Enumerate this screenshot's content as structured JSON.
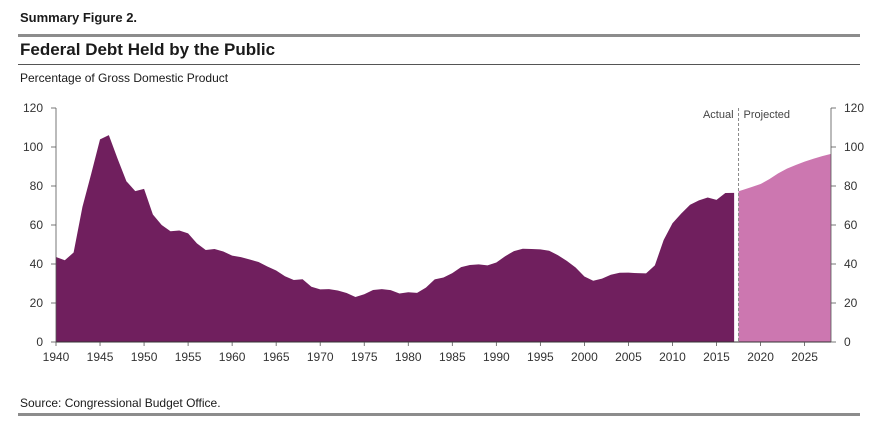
{
  "figure_label": "Summary Figure 2.",
  "title": "Federal Debt Held by the Public",
  "subtitle": "Percentage of Gross Domestic Product",
  "source": "Source: Congressional Budget Office.",
  "colors": {
    "actual": "#701f5e",
    "projected": "#cc77b0",
    "rule": "#8c8c8c",
    "divider": "#888888"
  },
  "chart_data": {
    "type": "area",
    "ylim": [
      0,
      120
    ],
    "xlim": [
      1940,
      2028
    ],
    "y_ticks": [
      0,
      20,
      40,
      60,
      80,
      100,
      120
    ],
    "x_ticks": [
      1940,
      1945,
      1950,
      1955,
      1960,
      1965,
      1970,
      1975,
      1980,
      1985,
      1990,
      1995,
      2000,
      2005,
      2010,
      2015,
      2020,
      2025
    ],
    "divider_year": 2017.5,
    "region_labels": {
      "left": "Actual",
      "right": "Projected"
    },
    "grid": false,
    "series": [
      {
        "name": "Actual",
        "x": [
          1940,
          1941,
          1942,
          1943,
          1944,
          1945,
          1946,
          1947,
          1948,
          1949,
          1950,
          1951,
          1952,
          1953,
          1954,
          1955,
          1956,
          1957,
          1958,
          1959,
          1960,
          1961,
          1962,
          1963,
          1964,
          1965,
          1966,
          1967,
          1968,
          1969,
          1970,
          1971,
          1972,
          1973,
          1974,
          1975,
          1976,
          1977,
          1978,
          1979,
          1980,
          1981,
          1982,
          1983,
          1984,
          1985,
          1986,
          1987,
          1988,
          1989,
          1990,
          1991,
          1992,
          1993,
          1994,
          1995,
          1996,
          1997,
          1998,
          1999,
          2000,
          2001,
          2002,
          2003,
          2004,
          2005,
          2006,
          2007,
          2008,
          2009,
          2010,
          2011,
          2012,
          2013,
          2014,
          2015,
          2016,
          2017
        ],
        "values": [
          43.6,
          41.9,
          45.9,
          69.2,
          86.3,
          103.9,
          106.1,
          93.9,
          82.4,
          77.4,
          78.5,
          65.4,
          60.0,
          56.8,
          57.2,
          55.7,
          50.6,
          47.2,
          47.7,
          46.4,
          44.3,
          43.5,
          42.3,
          41.0,
          38.7,
          36.7,
          33.7,
          31.8,
          32.2,
          28.3,
          27.0,
          27.1,
          26.4,
          25.1,
          23.1,
          24.5,
          26.7,
          27.1,
          26.6,
          24.9,
          25.5,
          25.2,
          27.9,
          32.1,
          33.1,
          35.3,
          38.4,
          39.5,
          39.8,
          39.3,
          40.8,
          44.0,
          46.6,
          47.8,
          47.7,
          47.5,
          46.8,
          44.5,
          41.6,
          38.2,
          33.6,
          31.4,
          32.5,
          34.5,
          35.5,
          35.6,
          35.3,
          35.2,
          39.3,
          52.3,
          60.9,
          65.9,
          70.4,
          72.6,
          74.1,
          72.9,
          76.4,
          76.5
        ]
      },
      {
        "name": "Projected",
        "x": [
          2017.5,
          2018,
          2019,
          2020,
          2021,
          2022,
          2023,
          2024,
          2025,
          2026,
          2027,
          2028
        ],
        "values": [
          77.3,
          78.0,
          79.5,
          81.0,
          83.5,
          86.5,
          88.9,
          90.8,
          92.5,
          94.0,
          95.3,
          96.5
        ]
      }
    ]
  }
}
